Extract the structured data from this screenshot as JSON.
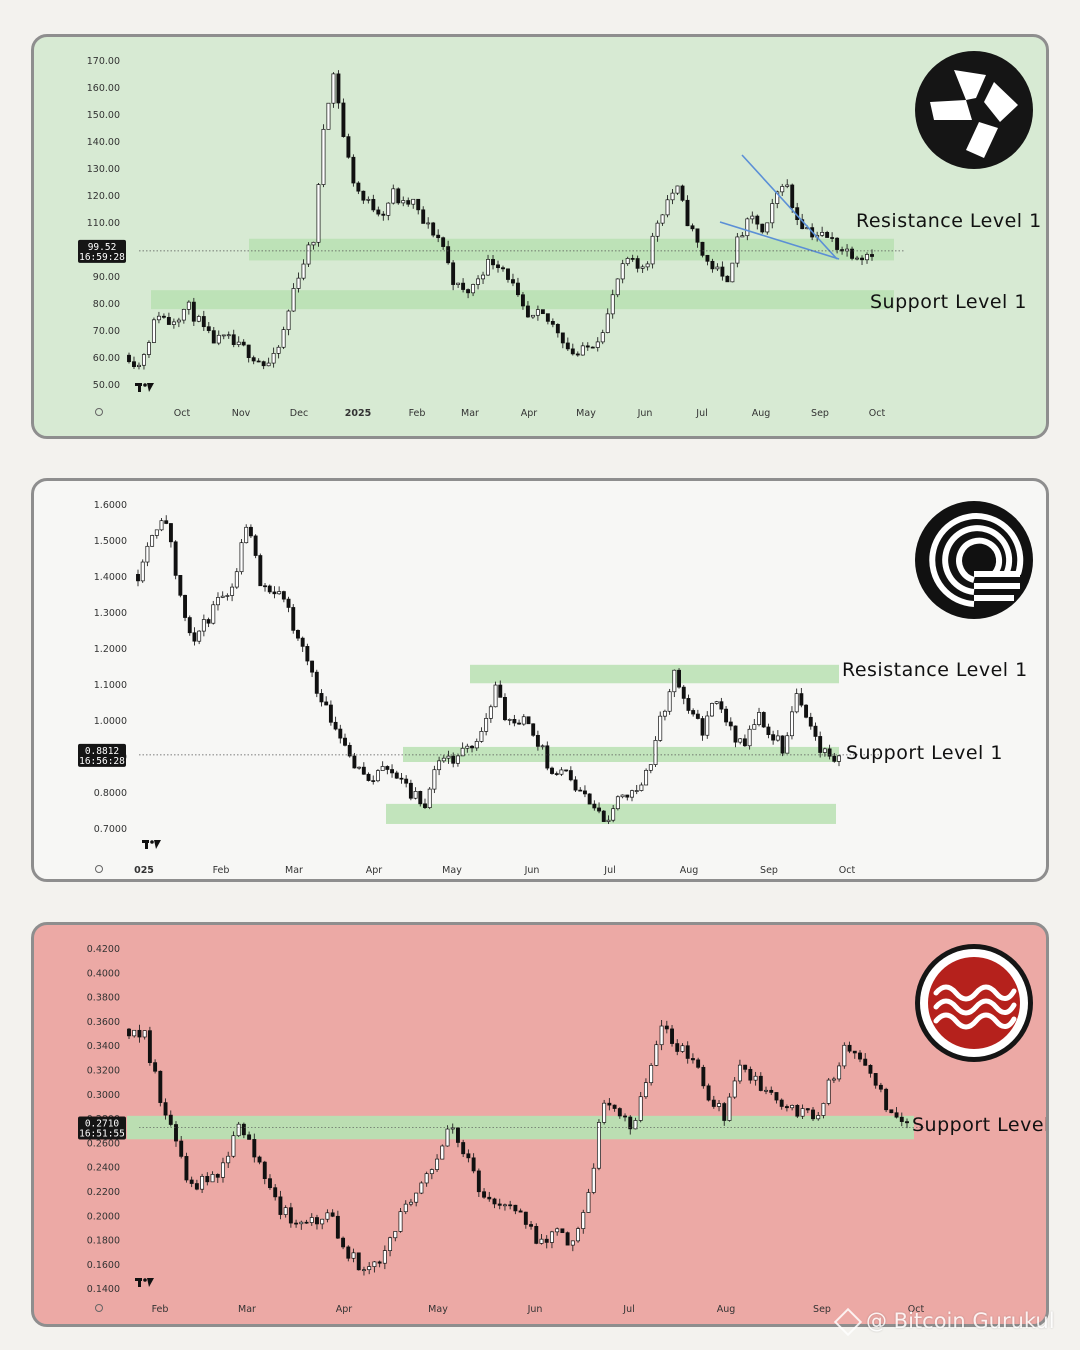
{
  "watermark": {
    "text": "@ Bitcoin Gurukul",
    "icon": "binance-diamond-icon"
  },
  "chart_data": [
    {
      "type": "candlestick",
      "background": "#d7ead3",
      "logo_icon": "quant-logo-icon",
      "y_ticks": [
        "170.00",
        "160.00",
        "150.00",
        "140.00",
        "130.00",
        "120.00",
        "110.00",
        "100.00",
        "90.00",
        "80.00",
        "70.00",
        "60.00",
        "50.00"
      ],
      "ylim": [
        50,
        170
      ],
      "x_ticks": [
        "Oct",
        "Nov",
        "Dec",
        "2025",
        "Feb",
        "Mar",
        "Apr",
        "May",
        "Jun",
        "Jul",
        "Aug",
        "Sep",
        "Oct"
      ],
      "bold_ticks": [
        "2025"
      ],
      "current_price": "99.52",
      "countdown": "16:59:28",
      "last_value": 99.52,
      "close_series": [
        61,
        57,
        67,
        77,
        73,
        76,
        79,
        74,
        68,
        66,
        67,
        64,
        63,
        60,
        57,
        60,
        72,
        88,
        97,
        105,
        150,
        166,
        140,
        125,
        118,
        116,
        114,
        121,
        116,
        118,
        110,
        107,
        103,
        90,
        84,
        85,
        92,
        96,
        95,
        89,
        79,
        73,
        76,
        73,
        70,
        63,
        61,
        64,
        68,
        76,
        89,
        96,
        93,
        96,
        110,
        118,
        123,
        112,
        103,
        96,
        93,
        87,
        101,
        108,
        112,
        104,
        118,
        127,
        114,
        109,
        106,
        105,
        103,
        100,
        99,
        98,
        99.5
      ],
      "zones": [
        {
          "label": "Resistance Level 1",
          "low": 96,
          "high": 104
        },
        {
          "label": "Support Level 1",
          "low": 78,
          "high": 85
        }
      ],
      "trendlines": "falling-wedge"
    },
    {
      "type": "candlestick",
      "background": "#f7f7f5",
      "logo_icon": "circular-arcs-logo-icon",
      "y_ticks": [
        "1.6000",
        "1.5000",
        "1.4000",
        "1.3000",
        "1.2000",
        "1.1000",
        "1.0000",
        "0.9000",
        "0.8000",
        "0.7000"
      ],
      "ylim": [
        0.66,
        1.63
      ],
      "x_ticks": [
        "025",
        "Feb",
        "Mar",
        "Apr",
        "May",
        "Jun",
        "Jul",
        "Aug",
        "Sep",
        "Oct"
      ],
      "bold_ticks": [
        "025"
      ],
      "current_price": "0.8812",
      "countdown": "16:56:28",
      "last_value": 0.8812,
      "close_series": [
        1.42,
        1.55,
        1.6,
        1.35,
        1.22,
        1.28,
        1.35,
        1.4,
        1.6,
        1.38,
        1.38,
        1.3,
        1.2,
        1.08,
        1.0,
        0.92,
        0.84,
        0.8,
        0.85,
        0.82,
        0.76,
        0.74,
        0.88,
        0.86,
        0.9,
        0.95,
        1.08,
        0.97,
        0.98,
        0.93,
        0.84,
        0.83,
        0.78,
        0.73,
        0.68,
        0.76,
        0.78,
        0.82,
        0.98,
        1.12,
        1.03,
        0.95,
        1.05,
        0.96,
        0.9,
        1.0,
        0.95,
        0.9,
        1.08,
        0.95,
        0.88,
        0.88
      ],
      "zones": [
        {
          "label": "Resistance Level 1",
          "low": 1.095,
          "high": 1.15
        },
        {
          "label": "Support Level 1",
          "low": 0.86,
          "high": 0.905
        },
        {
          "label": "",
          "low": 0.675,
          "high": 0.735
        }
      ]
    },
    {
      "type": "candlestick",
      "background": "#eca9a5",
      "logo_icon": "sui-logo-icon",
      "y_ticks": [
        "0.4200",
        "0.4000",
        "0.3800",
        "0.3600",
        "0.3400",
        "0.3200",
        "0.3000",
        "0.2800",
        "0.2600",
        "0.2400",
        "0.2200",
        "0.2000",
        "0.1800",
        "0.1600",
        "0.1400"
      ],
      "ylim": [
        0.135,
        0.425
      ],
      "x_ticks": [
        "Feb",
        "Mar",
        "Apr",
        "May",
        "Jun",
        "Jul",
        "Aug",
        "Sep",
        "Oct"
      ],
      "bold_ticks": [],
      "current_price": "0.2710",
      "countdown": "16:51:55",
      "last_value": 0.271,
      "close_series": [
        0.355,
        0.35,
        0.3,
        0.26,
        0.22,
        0.225,
        0.23,
        0.27,
        0.26,
        0.22,
        0.2,
        0.19,
        0.19,
        0.2,
        0.17,
        0.155,
        0.15,
        0.17,
        0.2,
        0.22,
        0.24,
        0.27,
        0.25,
        0.22,
        0.21,
        0.2,
        0.19,
        0.17,
        0.18,
        0.17,
        0.2,
        0.29,
        0.29,
        0.27,
        0.31,
        0.36,
        0.34,
        0.33,
        0.3,
        0.28,
        0.33,
        0.31,
        0.3,
        0.29,
        0.285,
        0.28,
        0.31,
        0.34,
        0.33,
        0.31,
        0.28,
        0.271
      ],
      "zones": [
        {
          "label": "Support Level",
          "low": 0.261,
          "high": 0.281
        }
      ]
    }
  ]
}
